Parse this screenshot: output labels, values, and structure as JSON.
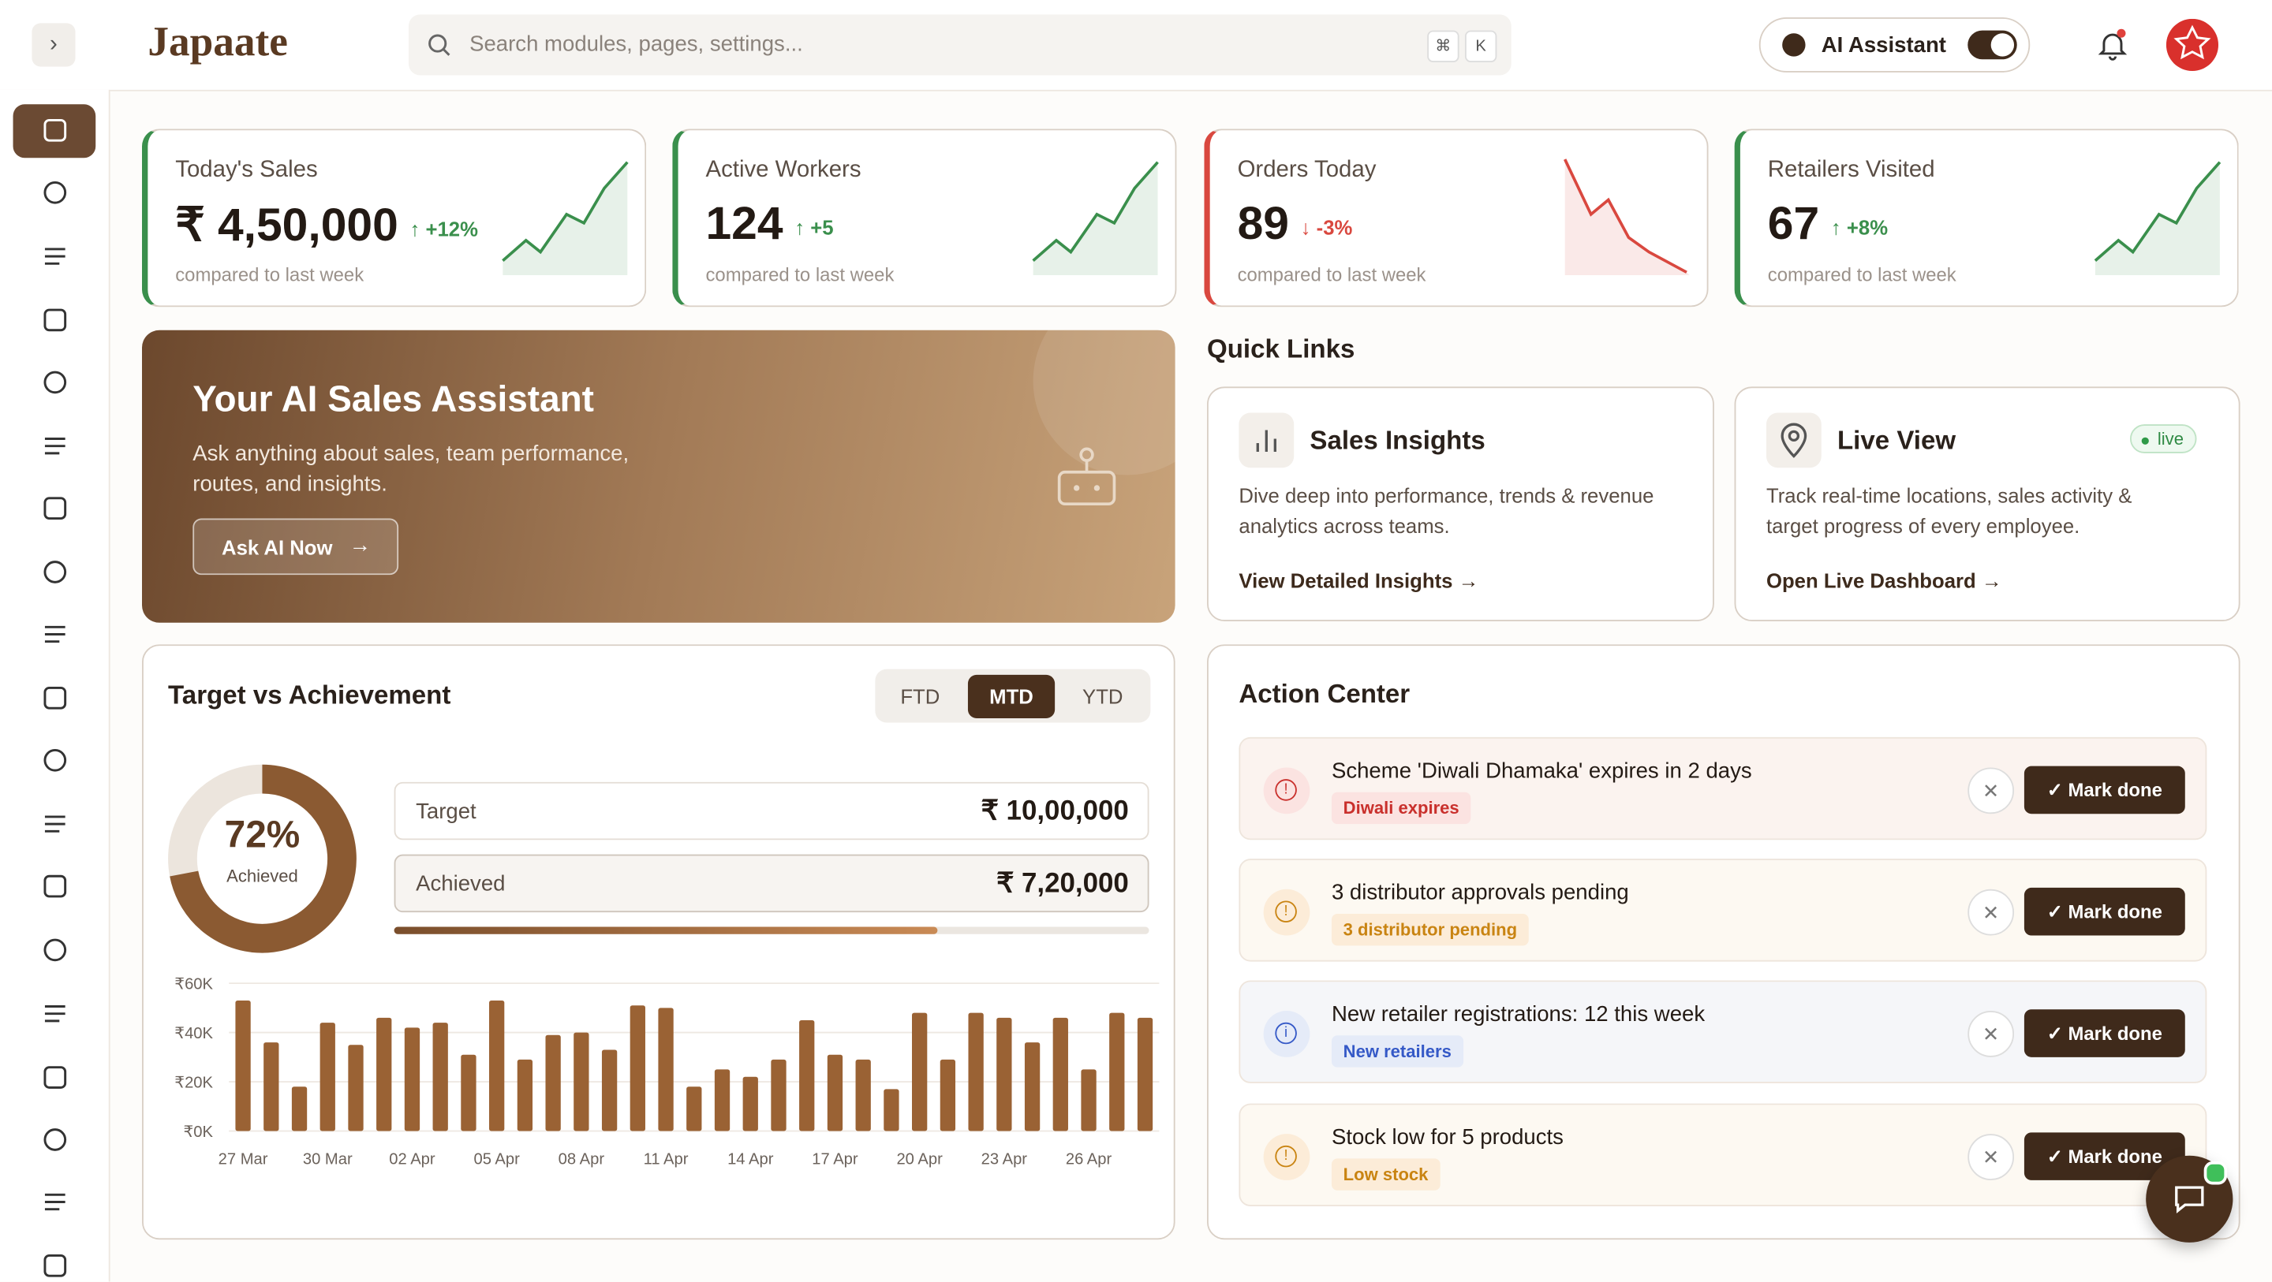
{
  "header": {
    "logo": "Japaate",
    "search_placeholder": "Search modules, pages, settings...",
    "shortcut": [
      "⌘",
      "K"
    ],
    "ai_assistant": "AI Assistant"
  },
  "kpis": [
    {
      "label": "Today's Sales",
      "value": "₹ 4,50,000",
      "change": "+12%",
      "note": "compared to last week",
      "trend": "up"
    },
    {
      "label": "Active Workers",
      "value": "124",
      "change": "+5",
      "note": "compared to last week",
      "trend": "up"
    },
    {
      "label": "Orders Today",
      "value": "89",
      "change": "-3%",
      "note": "compared to last week",
      "trend": "down"
    },
    {
      "label": "Retailers Visited",
      "value": "67",
      "change": "+8%",
      "note": "compared to last week",
      "trend": "up"
    }
  ],
  "banner": {
    "title": "Your AI Sales Assistant",
    "text": "Ask anything about sales, team performance, routes, and insights.",
    "button": "Ask AI Now"
  },
  "quick_links": {
    "title": "Quick Links",
    "items": [
      {
        "title": "Sales Insights",
        "text": "Dive deep into performance, trends & revenue analytics across teams.",
        "link": "View Detailed Insights"
      },
      {
        "title": "Live View",
        "badge": "live",
        "text": "Track real-time locations, sales activity & target progress of every employee.",
        "link": "Open Live Dashboard"
      }
    ]
  },
  "target": {
    "title": "Target vs Achievement",
    "tabs": [
      "FTD",
      "MTD",
      "YTD"
    ],
    "active_tab": 1,
    "percent": 72,
    "percent_label": "72%",
    "donut_caption": "Achieved",
    "target_label": "Target",
    "target_value": "₹ 10,00,000",
    "achieved_label": "Achieved",
    "achieved_value": "₹ 7,20,000"
  },
  "chart_data": {
    "type": "bar",
    "color": "#9a6234",
    "categories": [
      "27 Mar",
      null,
      null,
      "30 Mar",
      null,
      null,
      "02 Apr",
      null,
      null,
      "05 Apr",
      null,
      null,
      "08 Apr",
      null,
      null,
      "11 Apr",
      null,
      null,
      "14 Apr",
      null,
      null,
      "17 Apr",
      null,
      null,
      "20 Apr",
      null,
      null,
      "23 Apr",
      null,
      null,
      "26 Apr",
      null,
      null
    ],
    "values": [
      53,
      36,
      18,
      44,
      35,
      46,
      42,
      44,
      31,
      53,
      29,
      39,
      40,
      33,
      51,
      50,
      18,
      25,
      22,
      29,
      45,
      31,
      29,
      17,
      48,
      29,
      48,
      46,
      36,
      46,
      25,
      48,
      46
    ],
    "ylim": [
      0,
      60
    ],
    "yticks": [
      {
        "value": 0,
        "label": "₹0K"
      },
      {
        "value": 20,
        "label": "₹20K"
      },
      {
        "value": 40,
        "label": "₹40K"
      },
      {
        "value": 60,
        "label": "₹60K"
      }
    ],
    "grid": true
  },
  "action_center": {
    "title": "Action Center",
    "items": [
      {
        "text": "Scheme 'Diwali Dhamaka' expires in 2 days",
        "tag": "Diwali expires",
        "level": "danger",
        "button": "Mark done"
      },
      {
        "text": "3 distributor approvals pending",
        "tag": "3 distributor pending",
        "level": "warning",
        "button": "Mark done"
      },
      {
        "text": "New retailer registrations: 12 this week",
        "tag": "New retailers",
        "level": "info",
        "button": "Mark done"
      },
      {
        "text": "Stock low for 5 products",
        "tag": "Low stock",
        "level": "warning",
        "button": "Mark done"
      }
    ]
  }
}
